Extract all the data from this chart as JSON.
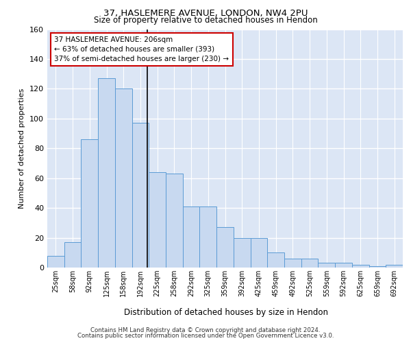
{
  "title1": "37, HASLEMERE AVENUE, LONDON, NW4 2PU",
  "title2": "Size of property relative to detached houses in Hendon",
  "xlabel": "Distribution of detached houses by size in Hendon",
  "ylabel": "Number of detached properties",
  "categories": [
    "25sqm",
    "58sqm",
    "92sqm",
    "125sqm",
    "158sqm",
    "192sqm",
    "225sqm",
    "258sqm",
    "292sqm",
    "325sqm",
    "359sqm",
    "392sqm",
    "425sqm",
    "459sqm",
    "492sqm",
    "525sqm",
    "559sqm",
    "592sqm",
    "625sqm",
    "659sqm",
    "692sqm"
  ],
  "bar_heights": [
    8,
    17,
    86,
    127,
    120,
    97,
    64,
    63,
    41,
    41,
    27,
    20,
    20,
    10,
    6,
    6,
    3,
    3,
    2,
    1,
    2
  ],
  "bar_color": "#c8d9f0",
  "bar_edge_color": "#5b9bd5",
  "annotation_line1": "37 HASLEMERE AVENUE: 206sqm",
  "annotation_line2": "← 63% of detached houses are smaller (393)",
  "annotation_line3": "37% of semi-detached houses are larger (230) →",
  "annotation_box_color": "#ffffff",
  "annotation_border_color": "#cc0000",
  "property_line_color": "#000000",
  "ylim": [
    0,
    160
  ],
  "yticks": [
    0,
    20,
    40,
    60,
    80,
    100,
    120,
    140,
    160
  ],
  "grid_color": "#ffffff",
  "bg_color": "#dce6f5",
  "footer1": "Contains HM Land Registry data © Crown copyright and database right 2024.",
  "footer2": "Contains public sector information licensed under the Open Government Licence v3.0."
}
